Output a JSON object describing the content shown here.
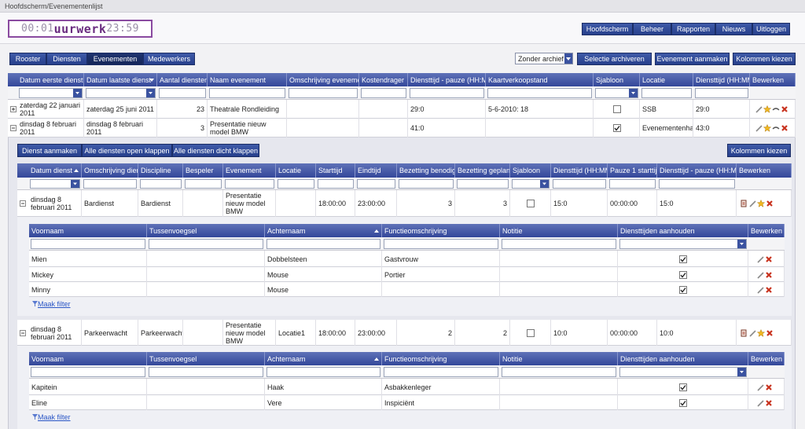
{
  "breadcrumb": "Hoofdscherm/Evenementenlijst",
  "logo": {
    "start": "00:01",
    "name": "uurwerk",
    "end": "23:59"
  },
  "top_nav": [
    "Hoofdscherm",
    "Beheer",
    "Rapporten",
    "Nieuws",
    "Uitloggen"
  ],
  "tabs": {
    "items": [
      "Rooster",
      "Diensten",
      "Evenementen",
      "Medewerkers"
    ],
    "active": 2
  },
  "archive_select": "Zonder archief",
  "actions": [
    "Selectie archiveren",
    "Evenement aanmaken",
    "Kolommen kiezen"
  ],
  "events": {
    "columns": [
      "Datum eerste dienst",
      "Datum laatste dienst",
      "Aantal diensten",
      "Naam evenement",
      "Omschrijving evenement",
      "Kostendrager",
      "Diensttijd - pauze (HH:MM)",
      "Kaartverkoopstand",
      "Sjabloon",
      "Locatie",
      "Diensttijd (HH:MM)",
      "Bewerken"
    ],
    "sort": {
      "column": 1,
      "dir": "desc"
    },
    "rows": [
      {
        "expanded": false,
        "cells": [
          "zaterdag 22 januari 2011",
          "zaterdag 25 juni 2011",
          23,
          "Theatrale Rondleiding",
          null,
          null,
          "29:0",
          "5-6-2010: 18",
          false,
          "SSB",
          "29:0"
        ]
      },
      {
        "expanded": true,
        "cells": [
          "dinsdag 8 februari 2011",
          "dinsdag 8 februari 2011",
          3,
          "Presentatie nieuw model BMW",
          null,
          null,
          "41:0",
          null,
          true,
          "Evenementenhal",
          "43:0"
        ]
      }
    ]
  },
  "sub_actions": [
    "Dienst aanmaken",
    "Alle diensten open klappen",
    "Alle diensten dicht klappen"
  ],
  "sub_columns_button": "Kolommen kiezen",
  "shifts": {
    "columns": [
      "Datum dienst",
      "Omschrijving dienst",
      "Discipline",
      "Bespeler",
      "Evenement",
      "Locatie",
      "Starttijd",
      "Eindtijd",
      "Bezetting benodigd",
      "Bezetting gepland",
      "Sjabloon",
      "Diensttijd (HH:MM)",
      "Pauze 1 starttijd",
      "Diensttijd - pauze (HH:MM)",
      "Bewerken"
    ],
    "sort": {
      "column": 0,
      "dir": "asc"
    },
    "rows": [
      {
        "expanded": true,
        "cells": [
          "dinsdag 8 februari 2011",
          "Bardienst",
          "Bardienst",
          null,
          "Presentatie nieuw model BMW",
          null,
          "18:00:00",
          "23:00:00",
          3,
          3,
          false,
          "15:0",
          "00:00:00",
          "15:0"
        ],
        "staff": {
          "columns": [
            "Voornaam",
            "Tussenvoegsel",
            "Achternaam",
            "Functieomschrijving",
            "Notitie",
            "Diensttijden aanhouden",
            "Bewerken"
          ],
          "sort": {
            "column": 2,
            "dir": "asc"
          },
          "rows": [
            {
              "cells": [
                "Mien",
                null,
                "Dobbelsteen",
                "Gastvrouw",
                null,
                true
              ]
            },
            {
              "cells": [
                "Mickey",
                null,
                "Mouse",
                "Portier",
                null,
                true
              ]
            },
            {
              "cells": [
                "Minny",
                null,
                "Mouse",
                null,
                null,
                true
              ]
            }
          ],
          "filter_link": "Maak filter"
        }
      },
      {
        "expanded": true,
        "cells": [
          "dinsdag 8 februari 2011",
          "Parkeerwacht",
          "Parkeerwacht",
          null,
          "Presentatie nieuw model BMW",
          "Locatie1",
          "18:00:00",
          "23:00:00",
          2,
          2,
          false,
          "10:0",
          "00:00:00",
          "10:0"
        ],
        "staff": {
          "columns": [
            "Voornaam",
            "Tussenvoegsel",
            "Achternaam",
            "Functieomschrijving",
            "Notitie",
            "Diensttijden aanhouden",
            "Bewerken"
          ],
          "sort": {
            "column": 2,
            "dir": "asc"
          },
          "rows": [
            {
              "cells": [
                "Kapitein",
                null,
                "Haak",
                "Asbakkenleger",
                null,
                true
              ]
            },
            {
              "cells": [
                "Eline",
                null,
                "Vere",
                "Inspiciënt",
                null,
                true
              ]
            }
          ],
          "filter_link": "Maak filter"
        }
      }
    ]
  }
}
